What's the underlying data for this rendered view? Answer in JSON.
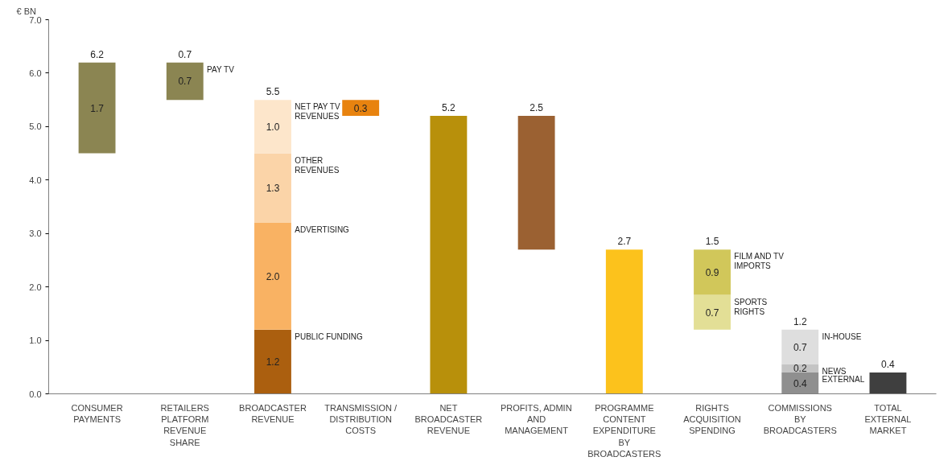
{
  "chart_data": {
    "type": "bar",
    "ylabel": "€ BN",
    "categories": [
      "CONSUMER\nPAYMENTS",
      "RETAILERS\nPLATFORM\nREVENUE\nSHARE",
      "BROADCASTER\nREVENUE",
      "TRANSMISSION /\nDISTRIBUTION\nCOSTS",
      "NET\nBROADCASTER\nREVENUE",
      "PROFITS, ADMIN\nAND\nMANAGEMENT",
      "PROGRAMME\nCONTENT\nEXPENDITURE\nBY\nBROADCASTERS",
      "RIGHTS\nACQUISITION\nSPENDING",
      "COMMISSIONS\nBY\nBROADCASTERS",
      "TOTAL\nEXTERNAL\nMARKET"
    ],
    "series": [
      {
        "base": [
          4.5,
          5.5,
          0,
          5.2,
          0,
          2.7,
          0,
          1.2,
          0,
          0
        ],
        "values": [
          1.7,
          0.7,
          1.2,
          0.3,
          5.2,
          2.5,
          2.7,
          0.65,
          0.4,
          0.4
        ],
        "colors": [
          "#8b8552",
          "#8b8552",
          "#ab5f0f",
          "#e8830f",
          "#b8900b",
          "#9b6132",
          "#fcc21c",
          "#e3df96",
          "#8f8f8f",
          "#3f3f3f"
        ],
        "value_labels": [
          "1.7",
          "0.7",
          "1.2",
          "0.3",
          null,
          null,
          null,
          "0.7",
          "0.4",
          null
        ]
      },
      {
        "base": [
          null,
          null,
          1.2,
          null,
          null,
          null,
          null,
          1.85,
          0.4,
          null
        ],
        "values": [
          null,
          null,
          2.0,
          null,
          null,
          null,
          null,
          0.85,
          0.15,
          null
        ],
        "colors": [
          null,
          null,
          "#f9b263",
          null,
          null,
          null,
          null,
          "#d1c75a",
          "#c4c4c4",
          null
        ],
        "value_labels": [
          null,
          null,
          "2.0",
          null,
          null,
          null,
          null,
          "0.9",
          "0.2",
          null
        ]
      },
      {
        "base": [
          null,
          null,
          3.2,
          null,
          null,
          null,
          null,
          null,
          0.55,
          null
        ],
        "values": [
          null,
          null,
          1.3,
          null,
          null,
          null,
          null,
          null,
          0.65,
          null
        ],
        "colors": [
          null,
          null,
          "#fbd4a8",
          null,
          null,
          null,
          null,
          null,
          "#dedede",
          null
        ],
        "value_labels": [
          null,
          null,
          "1.3",
          null,
          null,
          null,
          null,
          null,
          "0.7",
          null
        ]
      },
      {
        "base": [
          null,
          null,
          4.5,
          null,
          null,
          null,
          null,
          null,
          null,
          null
        ],
        "values": [
          null,
          null,
          1.0,
          null,
          null,
          null,
          null,
          null,
          null,
          null
        ],
        "colors": [
          null,
          null,
          "#fde6cb",
          null,
          null,
          null,
          null,
          null,
          null,
          null
        ],
        "value_labels": [
          null,
          null,
          "1.0",
          null,
          null,
          null,
          null,
          null,
          null,
          null
        ]
      }
    ],
    "annotations": [
      {
        "text": "6.2",
        "x": "CONSUMER\nPAYMENTS",
        "y": 6.2
      },
      {
        "text": "0.7",
        "x": "RETAILERS\nPLATFORM\nREVENUE\nSHARE",
        "y": 6.2
      },
      {
        "text": "5.5",
        "x": "BROADCASTER\nREVENUE",
        "y": 5.5
      },
      {
        "text": "5.2",
        "x": "NET\nBROADCASTER\nREVENUE",
        "y": 5.2
      },
      {
        "text": "2.5",
        "x": "PROFITS, ADMIN\nAND\nMANAGEMENT",
        "y": 5.2
      },
      {
        "text": "2.7",
        "x": "PROGRAMME\nCONTENT\nEXPENDITURE\nBY\nBROADCASTERS",
        "y": 2.7
      },
      {
        "text": "1.5",
        "x": "RIGHTS\nACQUISITION\nSPENDING",
        "y": 2.7
      },
      {
        "text": "1.2",
        "x": "COMMISSIONS\nBY\nBROADCASTERS",
        "y": 1.2
      },
      {
        "text": "0.4",
        "x": "TOTAL\nEXTERNAL\nMARKET",
        "y": 0.4
      },
      {
        "text": "PAY TV",
        "x": "RETAILERS\nPLATFORM\nREVENUE\nSHARE",
        "y": 6.2
      },
      {
        "text": "NET PAY TV\nREVENUES",
        "x": "BROADCASTER\nREVENUE",
        "y": 5.5
      },
      {
        "text": "OTHER\nREVENUES",
        "x": "BROADCASTER\nREVENUE",
        "y": 4.5
      },
      {
        "text": "ADVERTISING",
        "x": "BROADCASTER\nREVENUE",
        "y": 3.2
      },
      {
        "text": "PUBLIC FUNDING",
        "x": "BROADCASTER\nREVENUE",
        "y": 1.2
      },
      {
        "text": "FILM AND TV\nIMPORTS",
        "x": "RIGHTS\nACQUISITION\nSPENDING",
        "y": 2.7
      },
      {
        "text": "SPORTS\nRIGHTS",
        "x": "RIGHTS\nACQUISITION\nSPENDING",
        "y": 1.85
      },
      {
        "text": "IN-HOUSE",
        "x": "COMMISSIONS\nBY\nBROADCASTERS",
        "y": 1.2
      },
      {
        "text": "NEWS",
        "x": "COMMISSIONS\nBY\nBROADCASTERS",
        "y": 0.55
      },
      {
        "text": "EXTERNAL",
        "x": "COMMISSIONS\nBY\nBROADCASTERS",
        "y": 0.4
      }
    ],
    "ylim": [
      0,
      7
    ],
    "yticks": [
      {
        "value": 0,
        "label": "0.0"
      },
      {
        "value": 1,
        "label": "1.0"
      },
      {
        "value": 2,
        "label": "2.0"
      },
      {
        "value": 3,
        "label": "3.0"
      },
      {
        "value": 4,
        "label": "4.0"
      },
      {
        "value": 5,
        "label": "5.0"
      },
      {
        "value": 6,
        "label": "6.0"
      },
      {
        "value": 7,
        "label": "7.0"
      }
    ],
    "grid": false
  }
}
